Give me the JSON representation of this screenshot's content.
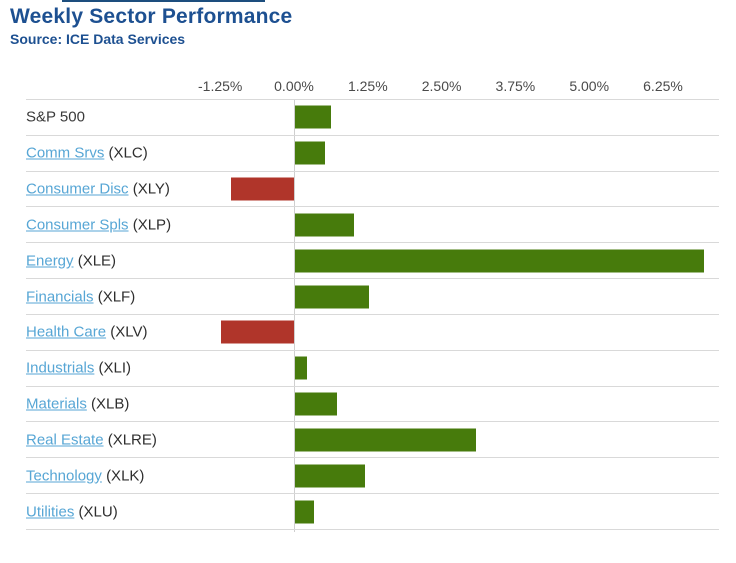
{
  "header": {
    "title": "Weekly Sector Performance",
    "source": "Source: ICE Data Services"
  },
  "chart_data": {
    "type": "bar",
    "orientation": "horizontal",
    "title": "Weekly Sector Performance",
    "source": "Source: ICE Data Services",
    "value_unit": "%",
    "x_axis": {
      "position": "top",
      "tick_values": [
        -1.25,
        0,
        1.25,
        2.5,
        3.75,
        5,
        6.25
      ],
      "tick_labels": [
        "-1.25%",
        "0.00%",
        "1.25%",
        "2.50%",
        "3.75%",
        "5.00%",
        "6.25%"
      ],
      "xlim": [
        -4.5,
        7.2
      ]
    },
    "rows": [
      {
        "name": "S&P 500",
        "ticker_label": "",
        "is_link": false,
        "value": 0.61
      },
      {
        "name": "Comm Srvs",
        "ticker_label": "(XLC)",
        "is_link": true,
        "value": 0.5
      },
      {
        "name": "Consumer Disc",
        "ticker_label": "(XLY)",
        "is_link": true,
        "value": -1.07
      },
      {
        "name": "Consumer Spls",
        "ticker_label": "(XLP)",
        "is_link": true,
        "value": 1.0
      },
      {
        "name": "Energy",
        "ticker_label": "(XLE)",
        "is_link": true,
        "value": 6.92
      },
      {
        "name": "Financials",
        "ticker_label": "(XLF)",
        "is_link": true,
        "value": 1.26
      },
      {
        "name": "Health Care",
        "ticker_label": "(XLV)",
        "is_link": true,
        "value": -1.23
      },
      {
        "name": "Industrials",
        "ticker_label": "(XLI)",
        "is_link": true,
        "value": 0.2
      },
      {
        "name": "Materials",
        "ticker_label": "(XLB)",
        "is_link": true,
        "value": 0.71
      },
      {
        "name": "Real Estate",
        "ticker_label": "(XLRE)",
        "is_link": true,
        "value": 3.07
      },
      {
        "name": "Technology",
        "ticker_label": "(XLK)",
        "is_link": true,
        "value": 1.19
      },
      {
        "name": "Utilities",
        "ticker_label": "(XLU)",
        "is_link": true,
        "value": 0.33
      }
    ],
    "colors": {
      "positive_bar": "#477b0c",
      "negative_bar": "#b0352a",
      "link_text": "#57a6d5",
      "title_text": "#1d5091",
      "gridline": "#d9d9d9",
      "label_text": "#3a3a3a"
    },
    "legend": "none",
    "grid": "row separators + zero line only"
  }
}
